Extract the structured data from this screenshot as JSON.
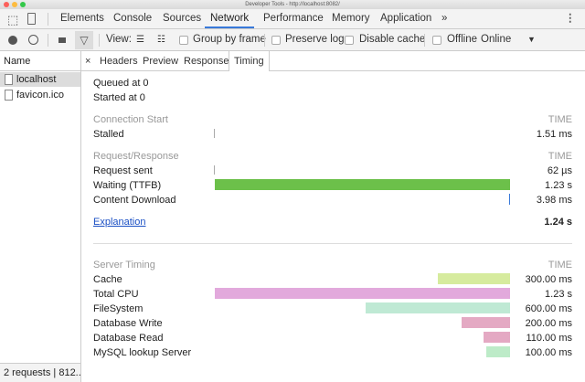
{
  "window": {
    "title": "Developer Tools - http://localhost:8082/"
  },
  "tabs": [
    "Elements",
    "Console",
    "Sources",
    "Network",
    "Performance",
    "Memory",
    "Application"
  ],
  "active_tab": "Network",
  "tabs_overflow": "»",
  "toolbar": {
    "view_label": "View:",
    "group_by_frame": "Group by frame",
    "preserve_log": "Preserve log",
    "disable_cache": "Disable cache",
    "offline": "Offline",
    "throttle": "Online"
  },
  "left": {
    "header": "Name",
    "items": [
      "localhost",
      "favicon.ico"
    ],
    "status": "2 requests | 812..."
  },
  "detail_tabs": [
    "Headers",
    "Preview",
    "Response",
    "Timing"
  ],
  "active_detail_tab": "Timing",
  "timing": {
    "queued": "Queued at 0",
    "started": "Started at 0",
    "connection_start": {
      "label": "Connection Start",
      "col": "TIME",
      "rows": [
        {
          "label": "Stalled",
          "value": "1.51 ms"
        }
      ]
    },
    "request_response": {
      "label": "Request/Response",
      "col": "TIME",
      "rows": [
        {
          "label": "Request sent",
          "value": "62 µs"
        },
        {
          "label": "Waiting (TTFB)",
          "value": "1.23 s",
          "color": "#6cc04a"
        },
        {
          "label": "Content Download",
          "value": "3.98 ms",
          "color": "#3879d9"
        }
      ]
    },
    "explanation": "Explanation",
    "total": "1.24 s",
    "server_timing": {
      "label": "Server Timing",
      "col": "TIME",
      "rows": [
        {
          "label": "Cache",
          "value": "300.00 ms",
          "ms": 300,
          "color": "#d6eb9e"
        },
        {
          "label": "Total CPU",
          "value": "1.23 s",
          "ms": 1230,
          "color": "#e2a9dc"
        },
        {
          "label": "FileSystem",
          "value": "600.00 ms",
          "ms": 600,
          "color": "#bfe9d4"
        },
        {
          "label": "Database Write",
          "value": "200.00 ms",
          "ms": 200,
          "color": "#e4a9c3"
        },
        {
          "label": "Database Read",
          "value": "110.00 ms",
          "ms": 110,
          "color": "#e4a9c3"
        },
        {
          "label": "MySQL lookup Server",
          "value": "100.00 ms",
          "ms": 100,
          "color": "#bdebc8"
        }
      ]
    }
  }
}
